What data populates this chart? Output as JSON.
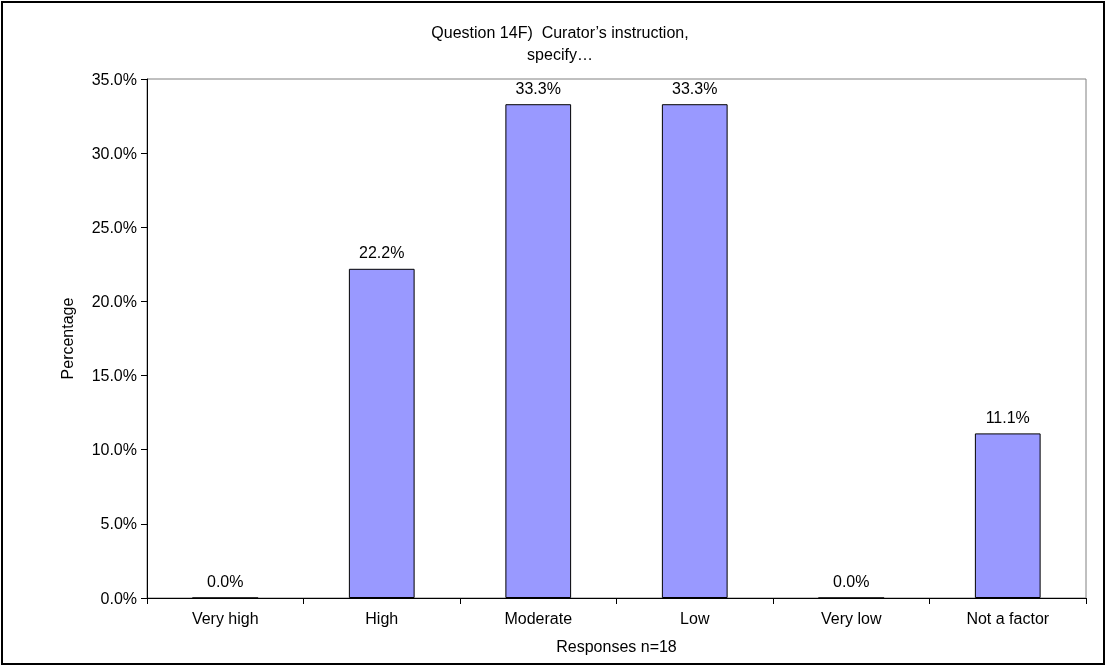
{
  "chart_data": {
    "type": "bar",
    "title": "Question 14F)  Curator’s instruction,\nspecify…",
    "xlabel": "Responses n=18",
    "ylabel": "Percentage",
    "categories": [
      "Very high",
      "High",
      "Moderate",
      "Low",
      "Very low",
      "Not a factor"
    ],
    "values": [
      0,
      22.2,
      33.3,
      33.3,
      0,
      11.1
    ],
    "value_labels": [
      "0.0%",
      "22.2%",
      "33.3%",
      "33.3%",
      "0.0%",
      "11.1%"
    ],
    "color": "#9999ff",
    "ylim": [
      0,
      35
    ],
    "yticks": [
      {
        "value": 0,
        "label": "0.0%"
      },
      {
        "value": 5,
        "label": "5.0%"
      },
      {
        "value": 10,
        "label": "10.0%"
      },
      {
        "value": 15,
        "label": "15.0%"
      },
      {
        "value": 20,
        "label": "20.0%"
      },
      {
        "value": 25,
        "label": "25.0%"
      },
      {
        "value": 30,
        "label": "30.0%"
      },
      {
        "value": 35,
        "label": "35.0%"
      }
    ],
    "grid": false
  }
}
